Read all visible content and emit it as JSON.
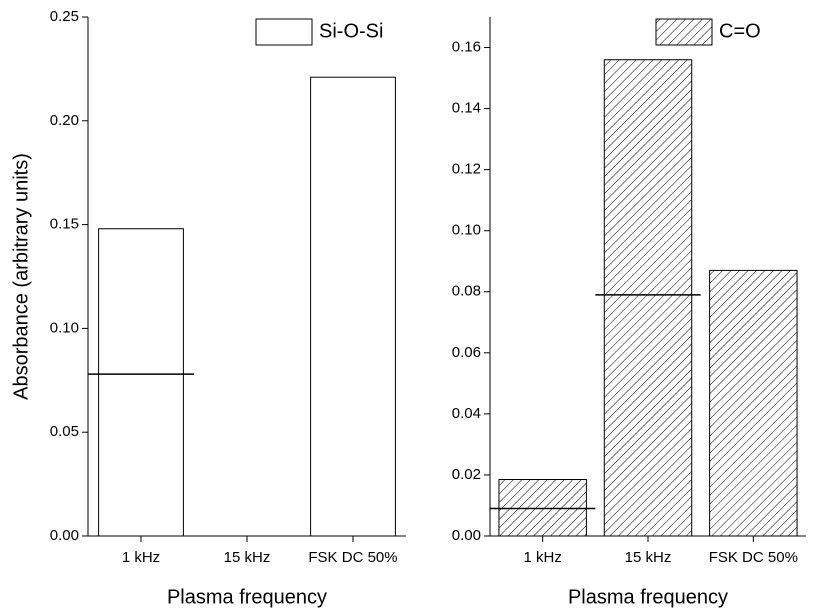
{
  "chart_data": [
    {
      "type": "bar",
      "y_label": "Absorbance (arbitrary units)",
      "x_label": "Plasma frequency",
      "categories": [
        "1 kHz",
        "15 kHz",
        "FSK DC 50%"
      ],
      "series": [
        {
          "name": "Si-O-Si",
          "color": "#000000",
          "hatch": false,
          "values": [
            0.148,
            null,
            0.221
          ],
          "markers": [
            0.078,
            null,
            null
          ]
        }
      ],
      "ylim": [
        0,
        0.25
      ],
      "yticks": [
        {
          "value": 0,
          "label": "0.00"
        },
        {
          "value": 0.05,
          "label": "0.05"
        },
        {
          "value": 0.1,
          "label": "0.10"
        },
        {
          "value": 0.15,
          "label": "0.15"
        },
        {
          "value": 0.2,
          "label": "0.20"
        },
        {
          "value": 0.25,
          "label": "0.25"
        }
      ],
      "legend": "upper right"
    },
    {
      "type": "bar",
      "x_label": "Plasma frequency",
      "categories": [
        "1 kHz",
        "15 kHz",
        "FSK DC 50%"
      ],
      "series": [
        {
          "name": "C=O",
          "color": "#000000",
          "hatch": true,
          "values": [
            0.0185,
            0.156,
            0.087
          ],
          "markers": [
            0.009,
            0.079,
            null
          ]
        }
      ],
      "ylim": [
        0,
        0.17
      ],
      "yticks": [
        {
          "value": 0,
          "label": "0.00"
        },
        {
          "value": 0.02,
          "label": "0.02"
        },
        {
          "value": 0.04,
          "label": "0.04"
        },
        {
          "value": 0.06,
          "label": "0.06"
        },
        {
          "value": 0.08,
          "label": "0.08"
        },
        {
          "value": 0.1,
          "label": "0.10"
        },
        {
          "value": 0.12,
          "label": "0.12"
        },
        {
          "value": 0.14,
          "label": "0.14"
        },
        {
          "value": 0.16,
          "label": "0.16"
        }
      ],
      "legend": "upper right"
    }
  ]
}
